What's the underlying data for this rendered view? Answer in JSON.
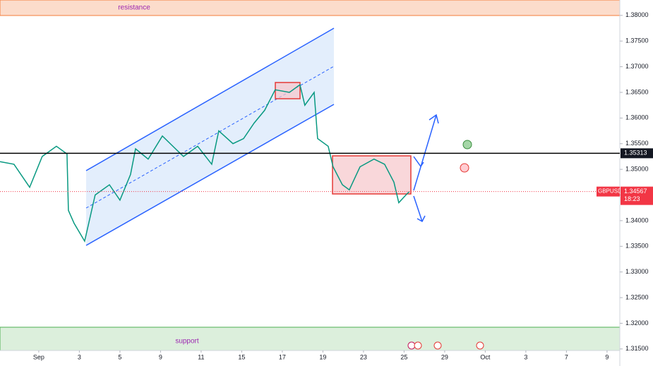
{
  "chart_data": {
    "type": "line",
    "symbol": "GBPUSD",
    "countdown": "18:23",
    "annotations": {
      "resistance": "resistance",
      "support": "support"
    },
    "x": [
      -1.91,
      -1.22,
      -0.45,
      0.17,
      0.87,
      1.39,
      1.46,
      1.74,
      2.26,
      2.78,
      3.48,
      4.0,
      4.52,
      4.77,
      5.39,
      6.09,
      6.61,
      7.13,
      7.83,
      8.52,
      8.87,
      9.57,
      10.09,
      10.61,
      11.13,
      11.65,
      12.35,
      12.87,
      13.11,
      13.57,
      13.74,
      14.26,
      14.5,
      14.96,
      15.3,
      15.83,
      16.52,
      17.04,
      17.5,
      17.74,
      18.09,
      18.26
    ],
    "series": [
      {
        "name": "GBPUSD",
        "color": "#089981",
        "values": [
          1.3515,
          1.351,
          1.3465,
          1.3525,
          1.3545,
          1.353,
          1.342,
          1.3395,
          1.336,
          1.345,
          1.347,
          1.344,
          1.349,
          1.354,
          1.352,
          1.3565,
          1.3545,
          1.3525,
          1.3545,
          1.351,
          1.3575,
          1.355,
          1.356,
          1.359,
          1.3615,
          1.3655,
          1.365,
          1.3665,
          1.3625,
          1.365,
          1.356,
          1.3545,
          1.3505,
          1.347,
          1.346,
          1.3505,
          1.352,
          1.351,
          1.3475,
          1.3435,
          1.345,
          1.34567
        ]
      }
    ],
    "hline": 1.35313,
    "last_price": 1.34567,
    "xlim": [
      -1.91,
      28.63
    ],
    "ylim": [
      1.3147,
      1.383
    ],
    "xticks": [
      {
        "value": 0,
        "label": "Sep"
      },
      {
        "value": 2,
        "label": "3"
      },
      {
        "value": 4,
        "label": "5"
      },
      {
        "value": 6,
        "label": "9"
      },
      {
        "value": 8,
        "label": "11"
      },
      {
        "value": 10,
        "label": "15"
      },
      {
        "value": 12,
        "label": "17"
      },
      {
        "value": 14,
        "label": "19"
      },
      {
        "value": 16,
        "label": "23"
      },
      {
        "value": 18,
        "label": "25"
      },
      {
        "value": 20,
        "label": "29"
      },
      {
        "value": 22,
        "label": "Oct"
      },
      {
        "value": 24,
        "label": "3"
      },
      {
        "value": 26,
        "label": "7"
      },
      {
        "value": 28,
        "label": "9"
      }
    ],
    "yticks": [
      {
        "value": 1.315,
        "label": "1.31500"
      },
      {
        "value": 1.32,
        "label": "1.32000"
      },
      {
        "value": 1.325,
        "label": "1.32500"
      },
      {
        "value": 1.33,
        "label": "1.33000"
      },
      {
        "value": 1.335,
        "label": "1.33500"
      },
      {
        "value": 1.34,
        "label": "1.34000"
      },
      {
        "value": 1.345,
        "label": "1.34500"
      },
      {
        "value": 1.35,
        "label": "1.35000"
      },
      {
        "value": 1.355,
        "label": "1.35500"
      },
      {
        "value": 1.36,
        "label": "1.36000"
      },
      {
        "value": 1.365,
        "label": "1.36500"
      },
      {
        "value": 1.37,
        "label": "1.37000"
      },
      {
        "value": 1.375,
        "label": "1.37500"
      },
      {
        "value": 1.38,
        "label": "1.38000"
      }
    ]
  }
}
